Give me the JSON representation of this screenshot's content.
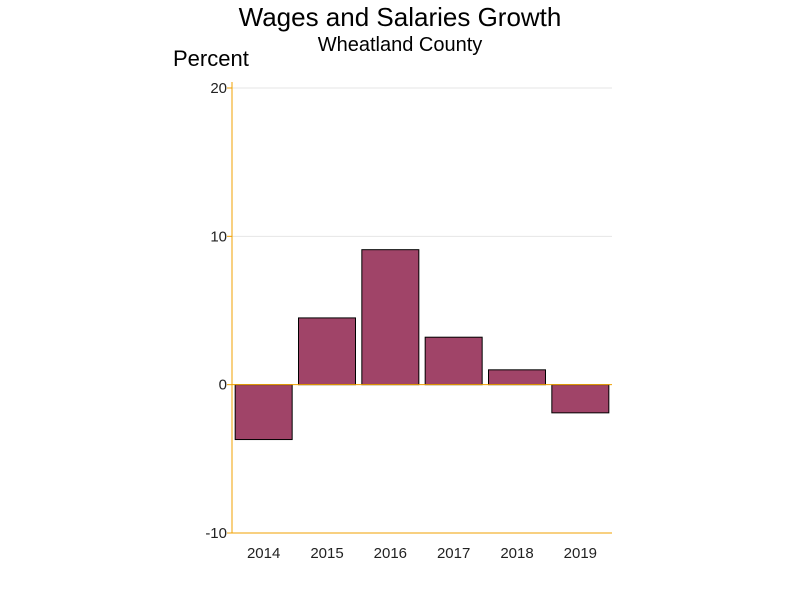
{
  "chart_data": {
    "type": "bar",
    "title": "Wages and Salaries Growth",
    "subtitle": "Wheatland County",
    "ylabel": "Percent",
    "xlabel": "",
    "categories": [
      "2014",
      "2015",
      "2016",
      "2017",
      "2018",
      "2019"
    ],
    "values": [
      -3.7,
      4.5,
      9.1,
      3.2,
      1.0,
      -1.9
    ],
    "ylim": [
      -10,
      20
    ],
    "yticks": [
      -10,
      0,
      10,
      20
    ],
    "grid": true,
    "colors": {
      "bar": "#a04468",
      "bar_edge": "#000000",
      "axis": "#f0a000",
      "grid": "#e6e6e6"
    }
  }
}
